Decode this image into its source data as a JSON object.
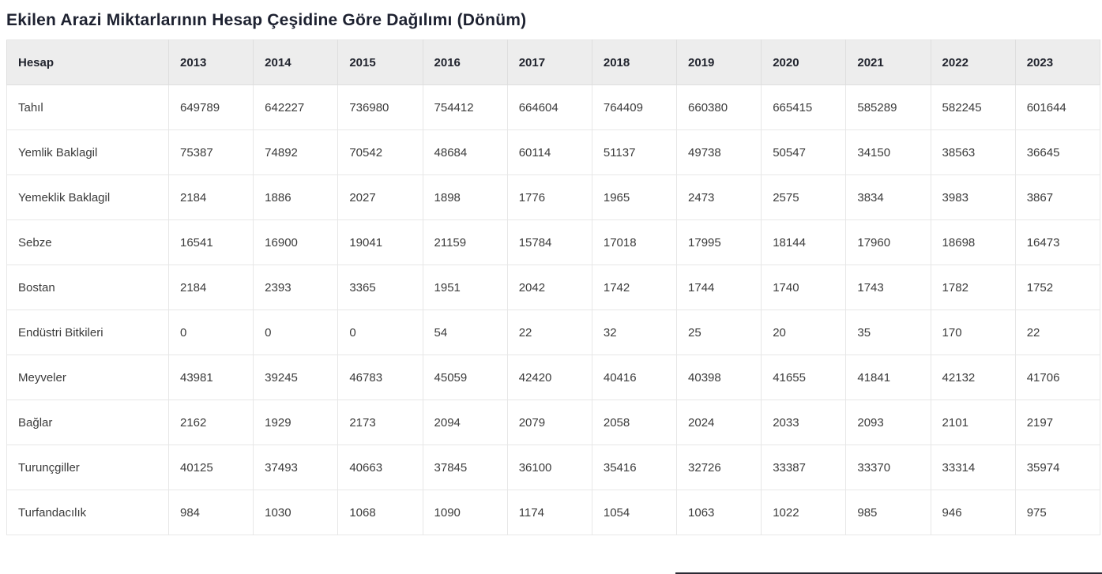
{
  "page": {
    "title": "Ekilen Arazi Miktarlarının Hesap Çeşidine Göre Dağılımı (Dönüm)"
  },
  "colors": {
    "title_text": "#1d2130",
    "header_bg": "#ededed",
    "cell_text": "#3b3b3b",
    "border": "#e7e7e7"
  },
  "table": {
    "columns": [
      "Hesap",
      "2013",
      "2014",
      "2015",
      "2016",
      "2017",
      "2018",
      "2019",
      "2020",
      "2021",
      "2022",
      "2023"
    ],
    "rows": [
      {
        "label": "Tahıl",
        "values": [
          649789,
          642227,
          736980,
          754412,
          664604,
          764409,
          660380,
          665415,
          585289,
          582245,
          601644
        ]
      },
      {
        "label": "Yemlik Baklagil",
        "values": [
          75387,
          74892,
          70542,
          48684,
          60114,
          51137,
          49738,
          50547,
          34150,
          38563,
          36645
        ]
      },
      {
        "label": "Yemeklik Baklagil",
        "values": [
          2184,
          1886,
          2027,
          1898,
          1776,
          1965,
          2473,
          2575,
          3834,
          3983,
          3867
        ]
      },
      {
        "label": "Sebze",
        "values": [
          16541,
          16900,
          19041,
          21159,
          15784,
          17018,
          17995,
          18144,
          17960,
          18698,
          16473
        ]
      },
      {
        "label": "Bostan",
        "values": [
          2184,
          2393,
          3365,
          1951,
          2042,
          1742,
          1744,
          1740,
          1743,
          1782,
          1752
        ]
      },
      {
        "label": "Endüstri Bitkileri",
        "values": [
          0,
          0,
          0,
          54,
          22,
          32,
          25,
          20,
          35,
          170,
          22
        ]
      },
      {
        "label": "Meyveler",
        "values": [
          43981,
          39245,
          46783,
          45059,
          42420,
          40416,
          40398,
          41655,
          41841,
          42132,
          41706
        ]
      },
      {
        "label": "Bağlar",
        "values": [
          2162,
          1929,
          2173,
          2094,
          2079,
          2058,
          2024,
          2033,
          2093,
          2101,
          2197
        ]
      },
      {
        "label": "Turunçgiller",
        "values": [
          40125,
          37493,
          40663,
          37845,
          36100,
          35416,
          32726,
          33387,
          33370,
          33314,
          35974
        ]
      },
      {
        "label": "Turfandacılık",
        "values": [
          984,
          1030,
          1068,
          1090,
          1174,
          1054,
          1063,
          1022,
          985,
          946,
          975
        ]
      }
    ]
  },
  "chart_data": {
    "type": "table",
    "title": "Ekilen Arazi Miktarlarının Hesap Çeşidine Göre Dağılımı (Dönüm)",
    "categories": [
      "2013",
      "2014",
      "2015",
      "2016",
      "2017",
      "2018",
      "2019",
      "2020",
      "2021",
      "2022",
      "2023"
    ],
    "row_header_label": "Hesap",
    "series": [
      {
        "name": "Tahıl",
        "values": [
          649789,
          642227,
          736980,
          754412,
          664604,
          764409,
          660380,
          665415,
          585289,
          582245,
          601644
        ]
      },
      {
        "name": "Yemlik Baklagil",
        "values": [
          75387,
          74892,
          70542,
          48684,
          60114,
          51137,
          49738,
          50547,
          34150,
          38563,
          36645
        ]
      },
      {
        "name": "Yemeklik Baklagil",
        "values": [
          2184,
          1886,
          2027,
          1898,
          1776,
          1965,
          2473,
          2575,
          3834,
          3983,
          3867
        ]
      },
      {
        "name": "Sebze",
        "values": [
          16541,
          16900,
          19041,
          21159,
          15784,
          17018,
          17995,
          18144,
          17960,
          18698,
          16473
        ]
      },
      {
        "name": "Bostan",
        "values": [
          2184,
          2393,
          3365,
          1951,
          2042,
          1742,
          1744,
          1740,
          1743,
          1782,
          1752
        ]
      },
      {
        "name": "Endüstri Bitkileri",
        "values": [
          0,
          0,
          0,
          54,
          22,
          32,
          25,
          20,
          35,
          170,
          22
        ]
      },
      {
        "name": "Meyveler",
        "values": [
          43981,
          39245,
          46783,
          45059,
          42420,
          40416,
          40398,
          41655,
          41841,
          42132,
          41706
        ]
      },
      {
        "name": "Bağlar",
        "values": [
          2162,
          1929,
          2173,
          2094,
          2079,
          2058,
          2024,
          2033,
          2093,
          2101,
          2197
        ]
      },
      {
        "name": "Turunçgiller",
        "values": [
          40125,
          37493,
          40663,
          37845,
          36100,
          35416,
          32726,
          33387,
          33370,
          33314,
          35974
        ]
      },
      {
        "name": "Turfandacılık",
        "values": [
          984,
          1030,
          1068,
          1090,
          1174,
          1054,
          1063,
          1022,
          985,
          946,
          975
        ]
      }
    ]
  }
}
